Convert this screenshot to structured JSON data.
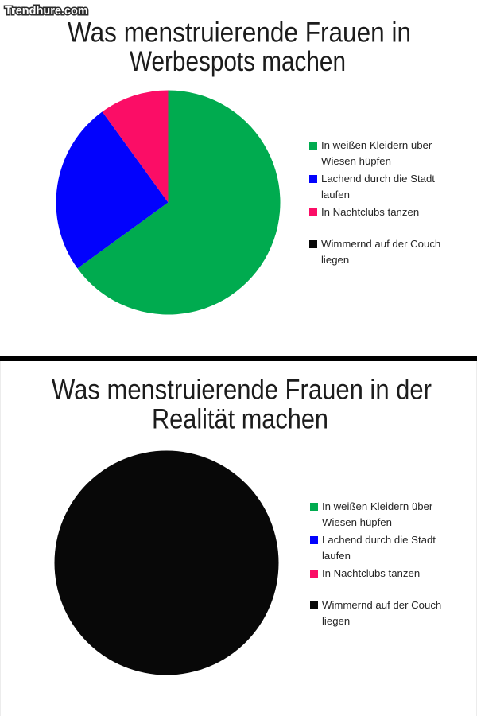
{
  "watermark": {
    "text": "Trendhure.com"
  },
  "colors": {
    "green": "#00ab4f",
    "blue": "#0202fd",
    "pink": "#fb0d66",
    "black": "#080808",
    "divider": "#000000",
    "title_text": "#1c1c1c",
    "legend_text": "#262626"
  },
  "legend": {
    "items": [
      {
        "label": "In weißen Kleidern über\nWiesen hüpfen",
        "color": "#00ab4f"
      },
      {
        "label": "Lachend durch die Stadt\nlaufen",
        "color": "#0202fd"
      },
      {
        "label": "In Nachtclubs tanzen",
        "color": "#fb0d66"
      },
      {
        "label": "Wimmernd auf der Couch\nliegen",
        "color": "#080808"
      }
    ]
  },
  "chart_data": [
    {
      "type": "pie",
      "title": "Was menstruierende Frauen in Werbespots machen",
      "title_lines": [
        "Was menstruierende Frauen in",
        "Werbespots machen"
      ],
      "categories": [
        "In weißen Kleidern über Wiesen hüpfen",
        "Lachend durch die Stadt laufen",
        "In Nachtclubs tanzen",
        "Wimmernd auf der Couch liegen"
      ],
      "values": [
        65,
        25,
        10,
        0
      ],
      "colors": [
        "#00ab4f",
        "#0202fd",
        "#fb0d66",
        "#080808"
      ],
      "start_angle_deg": 0,
      "direction": "clockwise",
      "legend_position": "right"
    },
    {
      "type": "pie",
      "title": "Was menstruierende Frauen in der Realität machen",
      "title_lines": [
        "Was menstruierende Frauen in der",
        "Realität machen"
      ],
      "categories": [
        "In weißen Kleidern über Wiesen hüpfen",
        "Lachend durch die Stadt laufen",
        "In Nachtclubs tanzen",
        "Wimmernd auf der Couch liegen"
      ],
      "values": [
        0,
        0,
        0,
        100
      ],
      "colors": [
        "#00ab4f",
        "#0202fd",
        "#fb0d66",
        "#080808"
      ],
      "start_angle_deg": 0,
      "direction": "clockwise",
      "legend_position": "right"
    }
  ]
}
